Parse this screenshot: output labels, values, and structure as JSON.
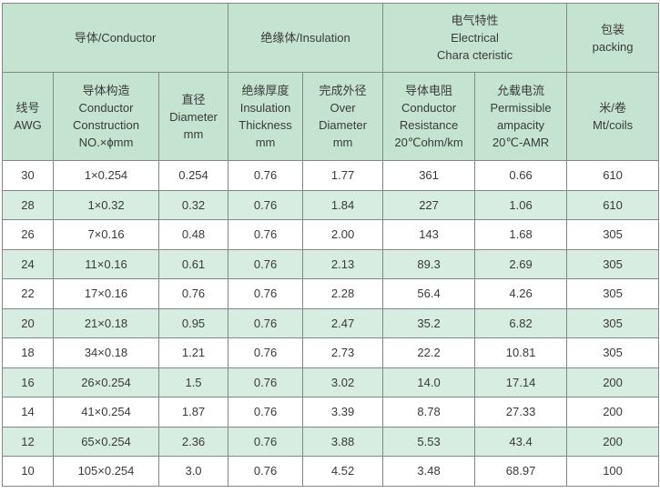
{
  "header": {
    "conductor": "导体/Conductor",
    "insulation": "绝缘体/Insulation",
    "electrical": [
      "电气特性",
      "Electrical",
      "Chara cteristic"
    ],
    "packing": [
      "包装",
      "packing"
    ]
  },
  "subheader": {
    "awg": [
      "线号",
      "AWG"
    ],
    "construction": [
      "导体构造",
      "Conductor",
      "Construction",
      "NO.×ϕmm"
    ],
    "diameter": [
      "直径",
      "Diameter",
      "mm"
    ],
    "thickness": [
      "绝缘厚度",
      "Insulation",
      "Thickness",
      "mm"
    ],
    "overall": [
      "完成外径",
      "Over",
      "Diameter",
      "mm"
    ],
    "resistance": [
      "导体电阻",
      "Conductor",
      "Resistance",
      "20℃ohm/km"
    ],
    "ampacity": [
      "允载电流",
      "Permissible",
      "ampacity",
      "20℃-AMR"
    ],
    "coils": [
      "米/卷",
      "Mt/coils"
    ]
  },
  "rows": [
    [
      "30",
      "1×0.254",
      "0.254",
      "0.76",
      "1.77",
      "361",
      "0.66",
      "610"
    ],
    [
      "28",
      "1×0.32",
      "0.32",
      "0.76",
      "1.84",
      "227",
      "1.06",
      "610"
    ],
    [
      "26",
      "7×0.16",
      "0.48",
      "0.76",
      "2.00",
      "143",
      "1.68",
      "305"
    ],
    [
      "24",
      "11×0.16",
      "0.61",
      "0.76",
      "2.13",
      "89.3",
      "2.69",
      "305"
    ],
    [
      "22",
      "17×0.16",
      "0.76",
      "0.76",
      "2.28",
      "56.4",
      "4.26",
      "305"
    ],
    [
      "20",
      "21×0.18",
      "0.95",
      "0.76",
      "2.47",
      "35.2",
      "6.82",
      "305"
    ],
    [
      "18",
      "34×0.18",
      "1.21",
      "0.76",
      "2.73",
      "22.2",
      "10.81",
      "305"
    ],
    [
      "16",
      "26×0.254",
      "1.5",
      "0.76",
      "3.02",
      "14.0",
      "17.14",
      "200"
    ],
    [
      "14",
      "41×0.254",
      "1.87",
      "0.76",
      "3.39",
      "8.78",
      "27.33",
      "200"
    ],
    [
      "12",
      "65×0.254",
      "2.36",
      "0.76",
      "3.88",
      "5.53",
      "43.4",
      "200"
    ],
    [
      "10",
      "105×0.254",
      "3.0",
      "0.76",
      "4.52",
      "3.48",
      "68.97",
      "100"
    ]
  ]
}
